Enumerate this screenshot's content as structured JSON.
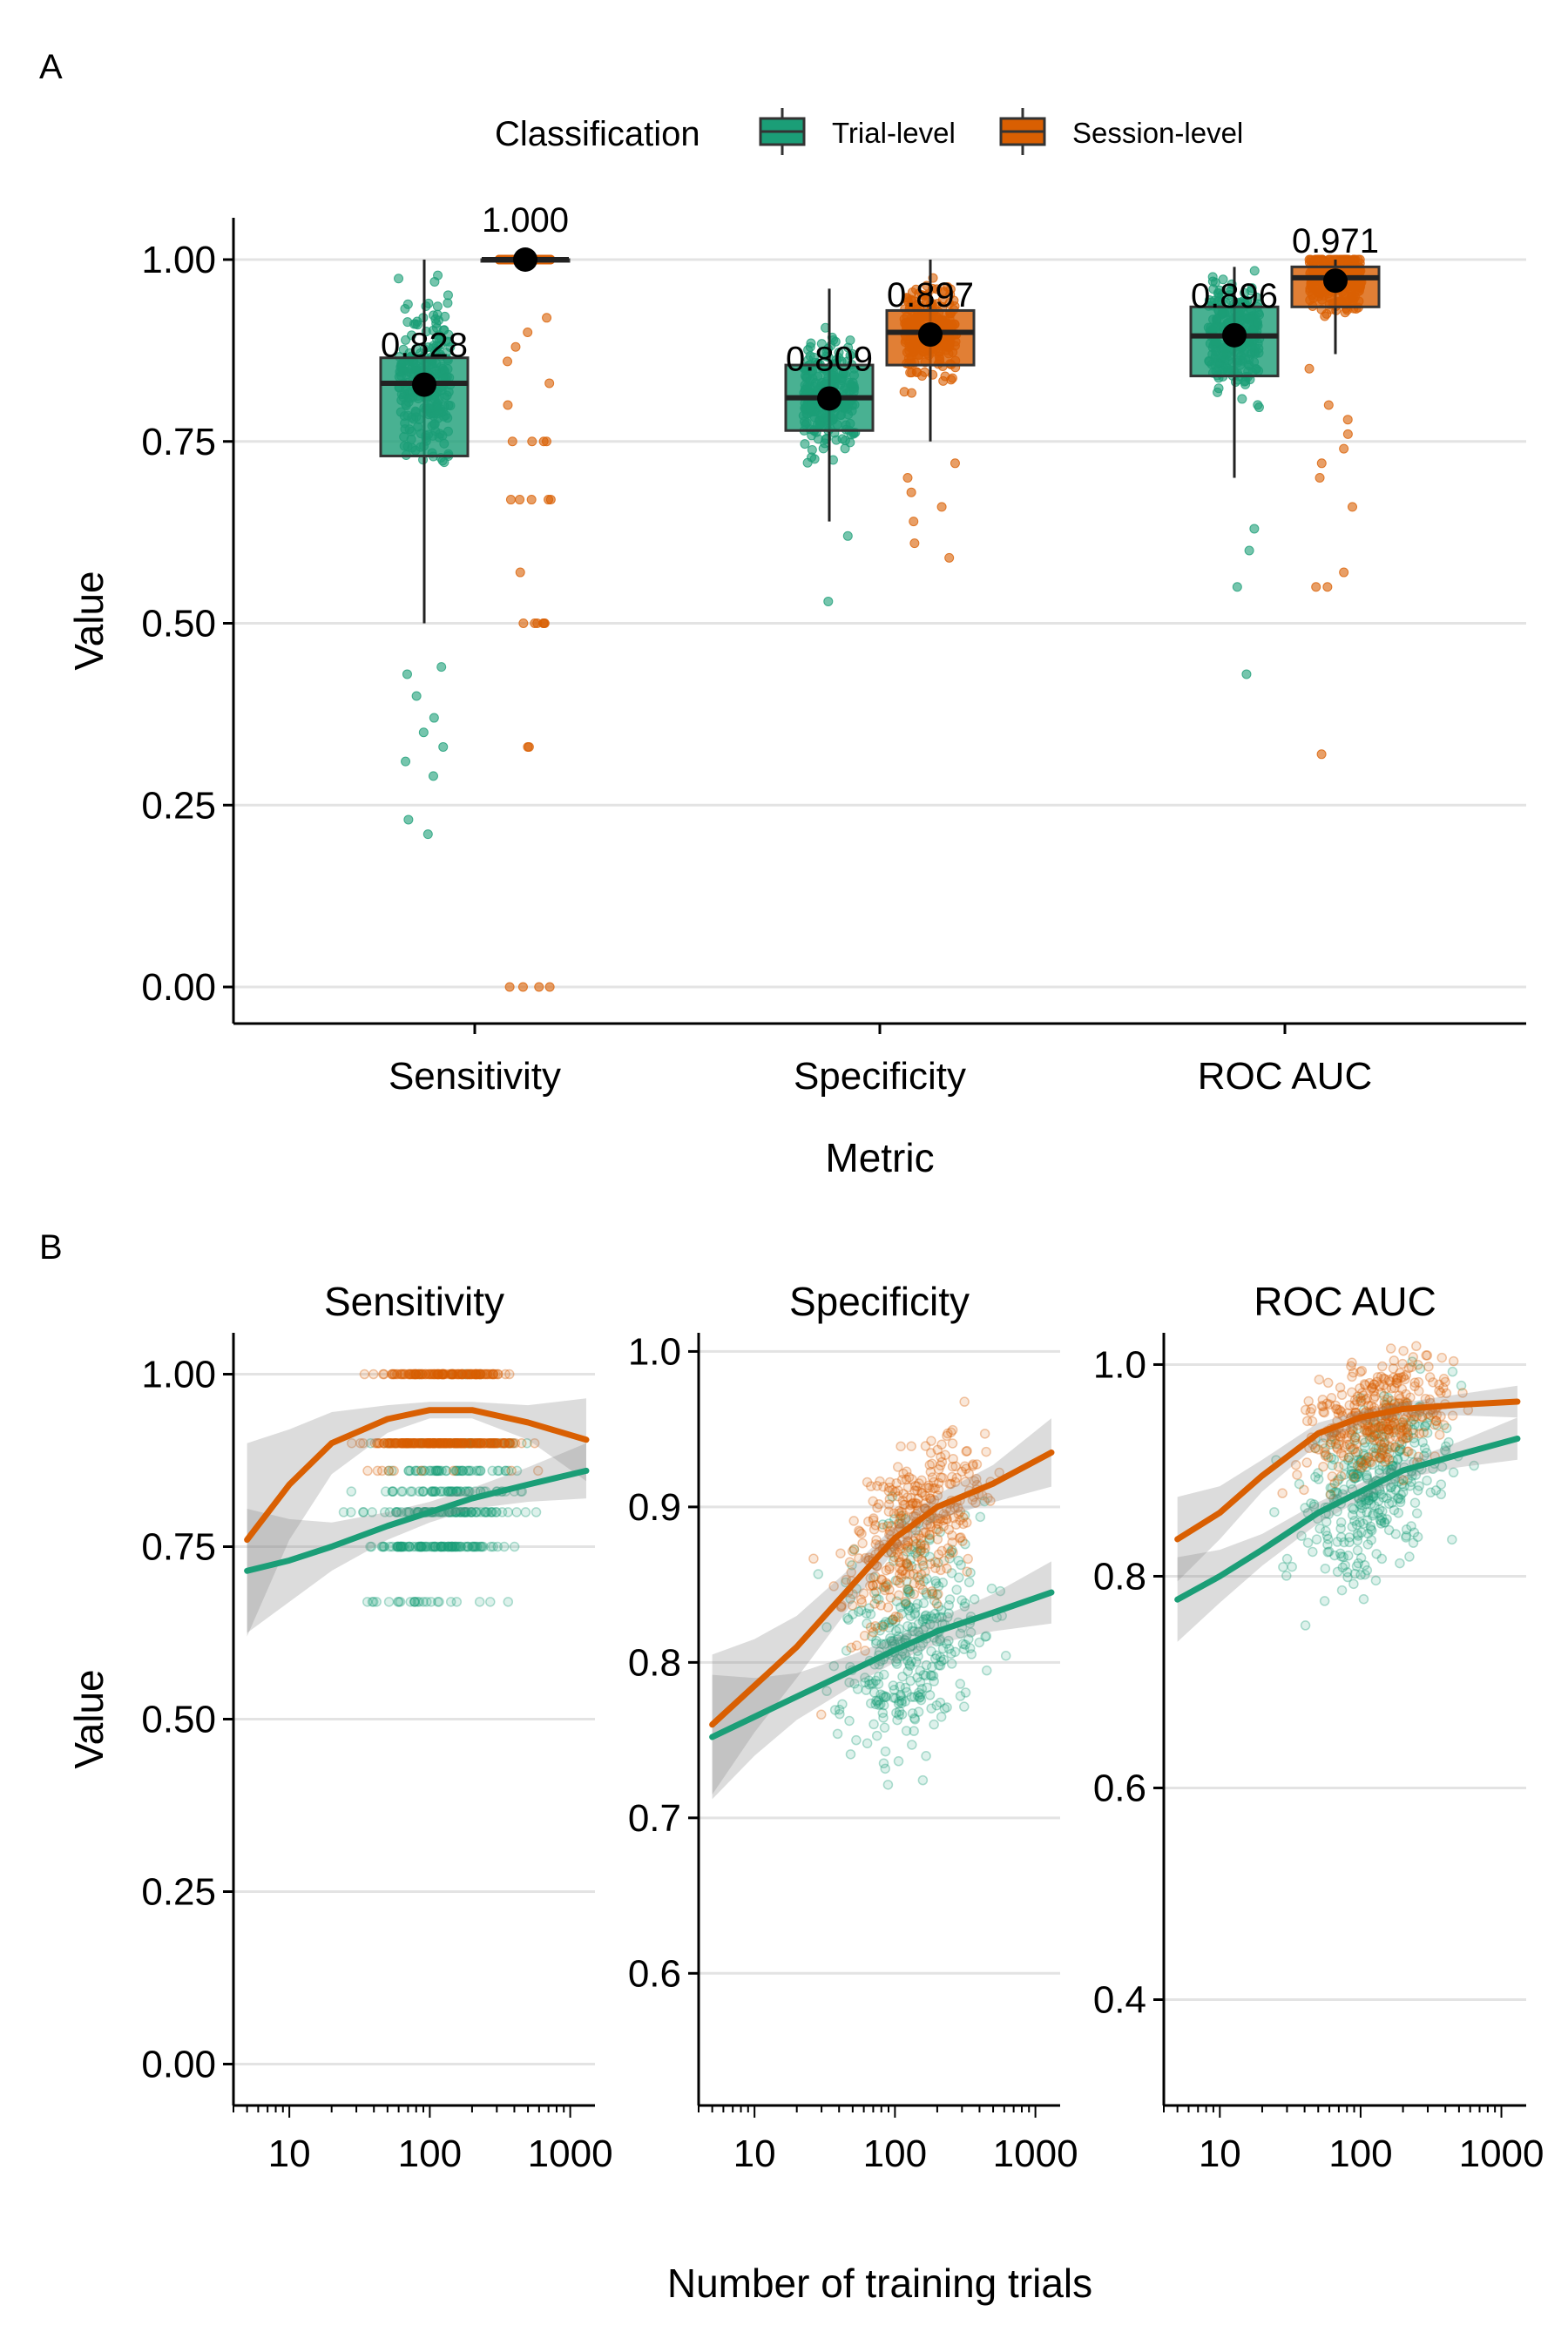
{
  "figure": {
    "panel_a_label": "A",
    "panel_b_label": "B"
  },
  "colors": {
    "trial": "#1b9e77",
    "session": "#d95f02",
    "grid": "#e3e3e3",
    "ribbon": "#8c8c8c",
    "mean_dot": "#000000"
  },
  "legend": {
    "title": "Classification",
    "items": [
      {
        "key": "trial",
        "label": "Trial-level"
      },
      {
        "key": "session",
        "label": "Session-level"
      }
    ]
  },
  "chart_data": [
    {
      "id": "panel-a",
      "type": "boxplot",
      "xlabel": "Metric",
      "ylabel": "Value",
      "ylim": [
        0,
        1
      ],
      "yticks": [
        0,
        0.25,
        0.5,
        0.75,
        1
      ],
      "ytick_labels": [
        "0.00",
        "0.25",
        "0.50",
        "0.75",
        "1.00"
      ],
      "categories": [
        "Sensitivity",
        "Specificity",
        "ROC AUC"
      ],
      "series": [
        {
          "name": "Trial-level",
          "key": "trial",
          "boxes": [
            {
              "q1": 0.73,
              "median": 0.83,
              "q3": 0.865,
              "whisker_low": 0.5,
              "whisker_high": 1.0,
              "mean": 0.828,
              "mean_label": "0.828"
            },
            {
              "q1": 0.765,
              "median": 0.81,
              "q3": 0.855,
              "whisker_low": 0.64,
              "whisker_high": 0.96,
              "mean": 0.809,
              "mean_label": "0.809"
            },
            {
              "q1": 0.84,
              "median": 0.895,
              "q3": 0.935,
              "whisker_low": 0.7,
              "whisker_high": 0.99,
              "mean": 0.896,
              "mean_label": "0.896"
            }
          ],
          "outliers": [
            [
              0.44,
              0.43,
              0.4,
              0.37,
              0.35,
              0.33,
              0.31,
              0.29,
              0.23,
              0.21
            ],
            [
              0.62,
              0.53
            ],
            [
              0.63,
              0.6,
              0.55,
              0.43
            ]
          ]
        },
        {
          "name": "Session-level",
          "key": "session",
          "boxes": [
            {
              "q1": 1.0,
              "median": 1.0,
              "q3": 1.0,
              "whisker_low": 1.0,
              "whisker_high": 1.0,
              "mean": 1.0,
              "mean_label": "1.000"
            },
            {
              "q1": 0.855,
              "median": 0.9,
              "q3": 0.93,
              "whisker_low": 0.75,
              "whisker_high": 1.0,
              "mean": 0.897,
              "mean_label": "0.897"
            },
            {
              "q1": 0.935,
              "median": 0.975,
              "q3": 0.99,
              "whisker_low": 0.87,
              "whisker_high": 1.0,
              "mean": 0.971,
              "mean_label": "0.971"
            }
          ],
          "outliers": [
            [
              0.92,
              0.9,
              0.88,
              0.86,
              0.83,
              0.8,
              0.75,
              0.75,
              0.75,
              0.75,
              0.67,
              0.67,
              0.67,
              0.67,
              0.67,
              0.57,
              0.5,
              0.5,
              0.5,
              0.5,
              0.5,
              0.5,
              0.33,
              0.33,
              0.0,
              0.0,
              0.0,
              0.0
            ],
            [
              0.72,
              0.7,
              0.68,
              0.66,
              0.64,
              0.61,
              0.59
            ],
            [
              0.85,
              0.8,
              0.78,
              0.76,
              0.74,
              0.72,
              0.7,
              0.66,
              0.57,
              0.55,
              0.55,
              0.32
            ]
          ]
        }
      ]
    },
    {
      "id": "panel-b",
      "type": "scatter",
      "xlabel": "Number of training trials",
      "ylabel": "Value",
      "xscale": "log10",
      "xlim": [
        4,
        1500
      ],
      "xticks": [
        10,
        100,
        1000
      ],
      "xtick_labels": [
        "10",
        "100",
        "1000"
      ],
      "facets": [
        {
          "title": "Sensitivity",
          "ylim": [
            -0.06,
            1.06
          ],
          "yticks": [
            0,
            0.25,
            0.5,
            0.75,
            1
          ],
          "ytick_labels": [
            "0.00",
            "0.25",
            "0.50",
            "0.75",
            "1.00"
          ],
          "trend": {
            "x": [
              5,
              10,
              20,
              50,
              100,
              200,
              500,
              1300
            ],
            "trial": [
              0.715,
              0.73,
              0.75,
              0.78,
              0.8,
              0.82,
              0.84,
              0.86
            ],
            "trial_band": [
              0.09,
              0.06,
              0.035,
              0.02,
              0.015,
              0.015,
              0.025,
              0.04
            ],
            "session": [
              0.76,
              0.84,
              0.9,
              0.935,
              0.948,
              0.948,
              0.93,
              0.905
            ],
            "session_band": [
              0.14,
              0.08,
              0.045,
              0.02,
              0.012,
              0.012,
              0.025,
              0.06
            ]
          }
        },
        {
          "title": "Specificity",
          "ylim": [
            0.515,
            1.012
          ],
          "yticks": [
            0.6,
            0.7,
            0.8,
            0.9,
            1.0
          ],
          "ytick_labels": [
            "0.6",
            "0.7",
            "0.8",
            "0.9",
            "1.0"
          ],
          "trend": {
            "x": [
              5,
              10,
              20,
              50,
              100,
              200,
              500,
              1300
            ],
            "trial": [
              0.752,
              0.765,
              0.778,
              0.795,
              0.808,
              0.82,
              0.832,
              0.845
            ],
            "trial_band": [
              0.04,
              0.025,
              0.015,
              0.01,
              0.008,
              0.008,
              0.012,
              0.02
            ],
            "session": [
              0.76,
              0.785,
              0.81,
              0.85,
              0.88,
              0.9,
              0.915,
              0.935
            ],
            "session_band": [
              0.045,
              0.03,
              0.02,
              0.012,
              0.008,
              0.008,
              0.012,
              0.022
            ]
          }
        },
        {
          "title": "ROC AUC",
          "ylim": [
            0.3,
            1.03
          ],
          "yticks": [
            0.4,
            0.6,
            0.8,
            1.0
          ],
          "ytick_labels": [
            "0.4",
            "0.6",
            "0.8",
            "1.0"
          ],
          "trend": {
            "x": [
              5,
              10,
              20,
              50,
              100,
              200,
              500,
              1300
            ],
            "trial": [
              0.778,
              0.8,
              0.825,
              0.86,
              0.88,
              0.9,
              0.915,
              0.93
            ],
            "trial_band": [
              0.04,
              0.025,
              0.015,
              0.01,
              0.008,
              0.008,
              0.012,
              0.02
            ],
            "session": [
              0.835,
              0.86,
              0.895,
              0.935,
              0.95,
              0.958,
              0.962,
              0.965
            ],
            "session_band": [
              0.04,
              0.025,
              0.015,
              0.01,
              0.006,
              0.006,
              0.01,
              0.015
            ]
          }
        }
      ]
    }
  ]
}
